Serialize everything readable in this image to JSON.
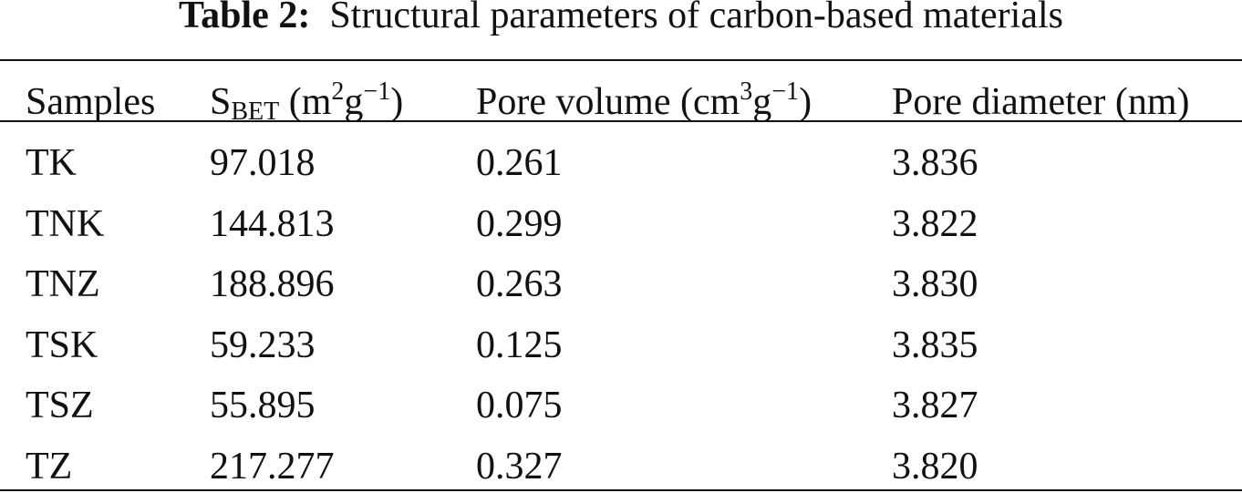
{
  "title": {
    "label": "Table 2:",
    "text": "Structural parameters of carbon-based materials"
  },
  "table": {
    "headers": [
      [
        "Samples"
      ],
      [
        "S",
        "BET",
        " (m",
        "2",
        "g",
        "−1",
        ")"
      ],
      [
        "Pore volume (cm",
        "3",
        "g",
        "−1",
        ")"
      ],
      [
        "Pore diameter (nm)"
      ]
    ],
    "rows": [
      [
        "TK",
        "97.018",
        "0.261",
        "3.836"
      ],
      [
        "TNK",
        "144.813",
        "0.299",
        "3.822"
      ],
      [
        "TNZ",
        "188.896",
        "0.263",
        "3.830"
      ],
      [
        "TSK",
        "59.233",
        "0.125",
        "3.835"
      ],
      [
        "TSZ",
        "55.895",
        "0.075",
        "3.827"
      ],
      [
        "TZ",
        "217.277",
        "0.327",
        "3.820"
      ]
    ]
  }
}
